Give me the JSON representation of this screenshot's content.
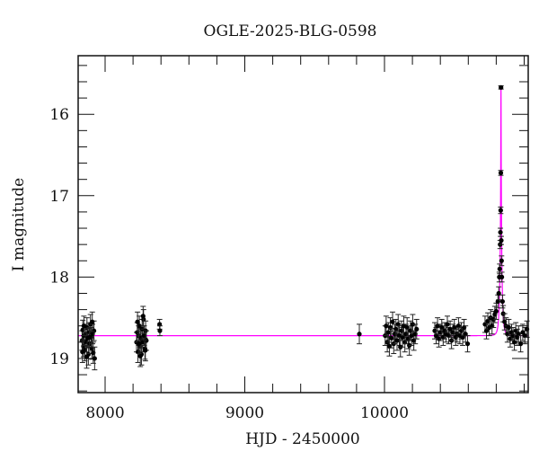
{
  "chart_data": {
    "type": "scatter",
    "title": "OGLE-2025-BLG-0598",
    "xlabel": "HJD - 2450000",
    "ylabel": "I magnitude",
    "xlim": [
      7807,
      11029
    ],
    "ylim": [
      15.28,
      19.42
    ],
    "y_inverted": true,
    "xticks": [
      8000,
      9000,
      10000
    ],
    "yticks": [
      16,
      17,
      18,
      19
    ],
    "x_minor_step": 200,
    "y_minor_step": 0.2,
    "grid": false,
    "colors": {
      "points": "#000000",
      "errorbars": "#222222",
      "model": "#ff00ff"
    },
    "model": {
      "name": "",
      "t0": 10834,
      "tE": 14,
      "u0": 0.06,
      "baseline": 18.72
    },
    "points": [
      [
        7835,
        18.78,
        0.12
      ],
      [
        7840,
        18.65,
        0.12
      ],
      [
        7845,
        18.85,
        0.13
      ],
      [
        7850,
        18.72,
        0.12
      ],
      [
        7855,
        18.9,
        0.13
      ],
      [
        7860,
        18.7,
        0.12
      ],
      [
        7865,
        18.8,
        0.12
      ],
      [
        7870,
        18.62,
        0.12
      ],
      [
        7875,
        18.75,
        0.12
      ],
      [
        7880,
        18.95,
        0.13
      ],
      [
        7885,
        18.68,
        0.12
      ],
      [
        7890,
        18.82,
        0.12
      ],
      [
        7895,
        18.58,
        0.12
      ],
      [
        7900,
        18.74,
        0.12
      ],
      [
        7905,
        18.88,
        0.13
      ],
      [
        7910,
        18.7,
        0.12
      ],
      [
        7915,
        18.93,
        0.13
      ],
      [
        7920,
        18.66,
        0.12
      ],
      [
        7925,
        19.0,
        0.14
      ],
      [
        7838,
        18.92,
        0.13
      ],
      [
        7848,
        18.6,
        0.12
      ],
      [
        7868,
        18.98,
        0.14
      ],
      [
        7888,
        18.74,
        0.12
      ],
      [
        7908,
        18.55,
        0.12
      ],
      [
        8225,
        18.8,
        0.12
      ],
      [
        8230,
        18.68,
        0.12
      ],
      [
        8235,
        18.92,
        0.13
      ],
      [
        8240,
        18.72,
        0.12
      ],
      [
        8245,
        18.6,
        0.12
      ],
      [
        8250,
        18.85,
        0.12
      ],
      [
        8255,
        18.75,
        0.12
      ],
      [
        8260,
        18.95,
        0.13
      ],
      [
        8265,
        18.64,
        0.12
      ],
      [
        8270,
        18.8,
        0.12
      ],
      [
        8275,
        18.52,
        0.12
      ],
      [
        8280,
        18.72,
        0.12
      ],
      [
        8285,
        18.88,
        0.13
      ],
      [
        8290,
        18.66,
        0.12
      ],
      [
        8295,
        18.78,
        0.12
      ],
      [
        8232,
        18.55,
        0.12
      ],
      [
        8252,
        18.97,
        0.13
      ],
      [
        8272,
        18.48,
        0.12
      ],
      [
        8288,
        18.9,
        0.13
      ],
      [
        8242,
        18.82,
        0.12
      ],
      [
        8390,
        18.58,
        0.06
      ],
      [
        8392,
        18.66,
        0.06
      ],
      [
        9820,
        18.7,
        0.12
      ],
      [
        10005,
        18.72,
        0.12
      ],
      [
        10012,
        18.6,
        0.12
      ],
      [
        10020,
        18.8,
        0.12
      ],
      [
        10028,
        18.68,
        0.12
      ],
      [
        10035,
        18.85,
        0.12
      ],
      [
        10042,
        18.62,
        0.12
      ],
      [
        10050,
        18.75,
        0.12
      ],
      [
        10058,
        18.55,
        0.12
      ],
      [
        10066,
        18.82,
        0.12
      ],
      [
        10074,
        18.7,
        0.12
      ],
      [
        10082,
        18.64,
        0.12
      ],
      [
        10090,
        18.78,
        0.12
      ],
      [
        10098,
        18.58,
        0.12
      ],
      [
        10106,
        18.72,
        0.12
      ],
      [
        10114,
        18.86,
        0.12
      ],
      [
        10122,
        18.66,
        0.12
      ],
      [
        10130,
        18.74,
        0.12
      ],
      [
        10138,
        18.6,
        0.12
      ],
      [
        10146,
        18.8,
        0.12
      ],
      [
        10154,
        18.7,
        0.12
      ],
      [
        10162,
        18.62,
        0.12
      ],
      [
        10170,
        18.76,
        0.12
      ],
      [
        10178,
        18.84,
        0.12
      ],
      [
        10186,
        18.66,
        0.12
      ],
      [
        10194,
        18.72,
        0.12
      ],
      [
        10202,
        18.58,
        0.12
      ],
      [
        10210,
        18.78,
        0.12
      ],
      [
        10220,
        18.7,
        0.12
      ],
      [
        10230,
        18.64,
        0.12
      ],
      [
        10360,
        18.66,
        0.1
      ],
      [
        10370,
        18.72,
        0.1
      ],
      [
        10380,
        18.6,
        0.1
      ],
      [
        10390,
        18.76,
        0.1
      ],
      [
        10400,
        18.68,
        0.1
      ],
      [
        10410,
        18.62,
        0.1
      ],
      [
        10420,
        18.74,
        0.1
      ],
      [
        10430,
        18.66,
        0.1
      ],
      [
        10440,
        18.7,
        0.1
      ],
      [
        10450,
        18.58,
        0.1
      ],
      [
        10460,
        18.72,
        0.1
      ],
      [
        10470,
        18.64,
        0.1
      ],
      [
        10480,
        18.78,
        0.1
      ],
      [
        10490,
        18.68,
        0.1
      ],
      [
        10500,
        18.62,
        0.1
      ],
      [
        10510,
        18.74,
        0.1
      ],
      [
        10520,
        18.7,
        0.1
      ],
      [
        10530,
        18.6,
        0.1
      ],
      [
        10540,
        18.72,
        0.1
      ],
      [
        10550,
        18.66,
        0.1
      ],
      [
        10560,
        18.74,
        0.1
      ],
      [
        10570,
        18.62,
        0.1
      ],
      [
        10580,
        18.7,
        0.1
      ],
      [
        10595,
        18.82,
        0.1
      ],
      [
        10720,
        18.58,
        0.1
      ],
      [
        10730,
        18.66,
        0.1
      ],
      [
        10740,
        18.54,
        0.1
      ],
      [
        10750,
        18.62,
        0.1
      ],
      [
        10760,
        18.5,
        0.1
      ],
      [
        10770,
        18.6,
        0.1
      ],
      [
        10780,
        18.52,
        0.1
      ],
      [
        10790,
        18.46,
        0.1
      ],
      [
        10800,
        18.42,
        0.1
      ],
      [
        10812,
        18.3,
        0.08
      ],
      [
        10818,
        18.2,
        0.08
      ],
      [
        10822,
        18.0,
        0.06
      ],
      [
        10825,
        17.9,
        0.06
      ],
      [
        10828,
        17.6,
        0.05
      ],
      [
        10830,
        17.45,
        0.05
      ],
      [
        10832,
        17.18,
        0.04
      ],
      [
        10833,
        16.72,
        0.03
      ],
      [
        10834,
        15.67,
        0.02
      ],
      [
        10836,
        17.55,
        0.05
      ],
      [
        10838,
        17.8,
        0.06
      ],
      [
        10840,
        18.0,
        0.06
      ],
      [
        10845,
        18.3,
        0.08
      ],
      [
        10850,
        18.45,
        0.1
      ],
      [
        10860,
        18.55,
        0.1
      ],
      [
        10870,
        18.6,
        0.1
      ],
      [
        10880,
        18.7,
        0.1
      ],
      [
        10890,
        18.62,
        0.1
      ],
      [
        10900,
        18.76,
        0.1
      ],
      [
        10910,
        18.68,
        0.1
      ],
      [
        10920,
        18.72,
        0.1
      ],
      [
        10930,
        18.8,
        0.1
      ],
      [
        10940,
        18.66,
        0.1
      ],
      [
        10950,
        18.74,
        0.1
      ],
      [
        10960,
        18.7,
        0.1
      ],
      [
        10975,
        18.82,
        0.1
      ],
      [
        10990,
        18.68,
        0.1
      ],
      [
        11005,
        18.72,
        0.1
      ],
      [
        11020,
        18.64,
        0.1
      ]
    ]
  }
}
